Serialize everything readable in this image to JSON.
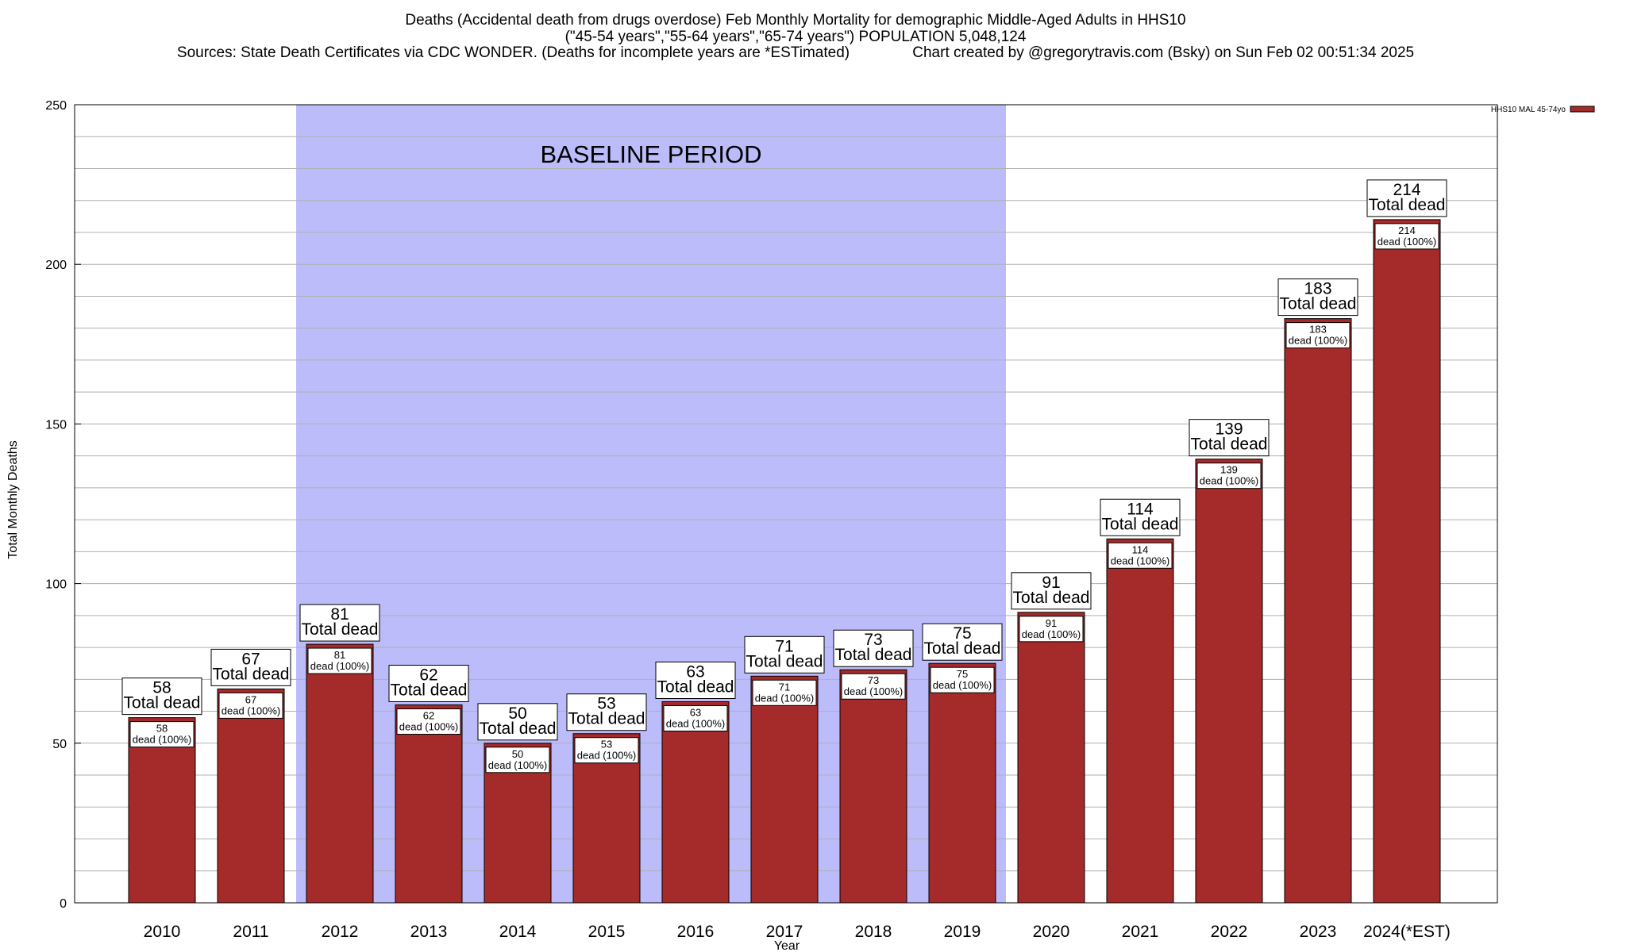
{
  "chart_data": {
    "type": "bar",
    "title_lines": [
      "Deaths (Accidental death from drugs overdose) Feb Monthly Mortality for demographic Middle-Aged Adults in HHS10",
      "(\"45-54 years\",\"55-64 years\",\"65-74 years\") POPULATION 5,048,124",
      "Sources: State Death Certificates via CDC WONDER. (Deaths for incomplete years are *ESTimated)               Chart created by @gregorytravis.com (Bsky) on Sun Feb 02 00:51:34 2025"
    ],
    "xlabel": "Year",
    "ylabel": "Total Monthly Deaths",
    "ylim": [
      0,
      250
    ],
    "y_ticks": [
      "0",
      "50",
      "100",
      "150",
      "200",
      "250"
    ],
    "grid": true,
    "categories": [
      "2010",
      "2011",
      "2012",
      "2013",
      "2014",
      "2015",
      "2016",
      "2017",
      "2018",
      "2019",
      "2020",
      "2021",
      "2022",
      "2023",
      "2024(*EST)"
    ],
    "series": [
      {
        "name": "HHS10 MAL 45-74yo",
        "color": "#a52a2a",
        "values": [
          58,
          67,
          81,
          62,
          50,
          53,
          63,
          71,
          73,
          75,
          91,
          114,
          139,
          183,
          214
        ]
      }
    ],
    "bar_labels": {
      "total_text": "Total dead",
      "inner_text": "dead (100%)"
    },
    "annotations": [
      {
        "type": "shaded_region",
        "text": "BASELINE PERIOD",
        "from": "2012",
        "to": "2019",
        "color": "#bcbcfb"
      }
    ],
    "legend": {
      "placement": "top-right",
      "entries": [
        "HHS10 MAL 45-74yo"
      ]
    }
  }
}
